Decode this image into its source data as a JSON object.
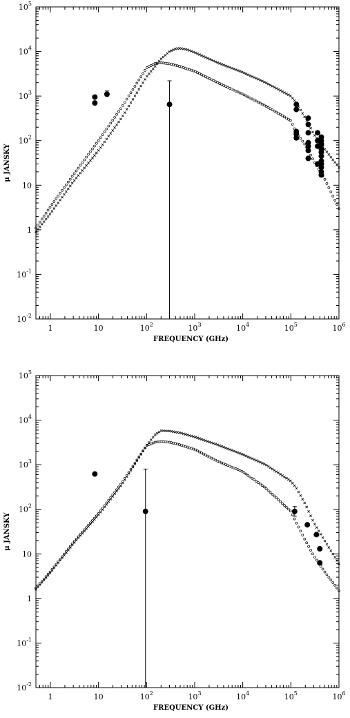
{
  "chart_data": [
    {
      "type": "scatter",
      "xlabel": "FREQUENCY (GHz)",
      "ylabel": "μ JANSKY",
      "x_scale": "log",
      "y_scale": "log",
      "xlim": [
        0.5,
        1000000
      ],
      "ylim": [
        0.01,
        100000
      ],
      "x_ticks": [
        {
          "base": "1",
          "exp": ""
        },
        {
          "base": "10",
          "exp": ""
        },
        {
          "base": "10",
          "exp": "2"
        },
        {
          "base": "10",
          "exp": "3"
        },
        {
          "base": "10",
          "exp": "4"
        },
        {
          "base": "10",
          "exp": "5"
        },
        {
          "base": "10",
          "exp": "6"
        }
      ],
      "y_ticks": [
        {
          "base": "10",
          "exp": "-2"
        },
        {
          "base": "10",
          "exp": "-1"
        },
        {
          "base": "1",
          "exp": ""
        },
        {
          "base": "10",
          "exp": ""
        },
        {
          "base": "10",
          "exp": "2"
        },
        {
          "base": "10",
          "exp": "3"
        },
        {
          "base": "10",
          "exp": "4"
        },
        {
          "base": "10",
          "exp": "5"
        }
      ],
      "grid": false,
      "series": [
        {
          "marker": "cross",
          "style": "model",
          "x": [
            0.5,
            1,
            3,
            10,
            30,
            100,
            200,
            300,
            400,
            500,
            700,
            1000,
            3000,
            10000,
            30000,
            100000,
            130000,
            200000,
            300000,
            500000,
            1000000
          ],
          "y": [
            0.9,
            2.3,
            12,
            60,
            320,
            2700,
            6800,
            10000,
            11500,
            11800,
            11000,
            9500,
            5600,
            3400,
            2000,
            1000,
            700,
            320,
            140,
            65,
            25
          ]
        },
        {
          "marker": "circle",
          "style": "model",
          "x": [
            0.5,
            1,
            3,
            10,
            30,
            100,
            150,
            200,
            300,
            500,
            1000,
            3000,
            10000,
            30000,
            100000,
            130000,
            200000,
            300000,
            500000,
            1000000
          ],
          "y": [
            1.1,
            3.3,
            17,
            100,
            550,
            4300,
            5400,
            5600,
            5300,
            4600,
            3600,
            2000,
            1100,
            600,
            280,
            150,
            80,
            35,
            14,
            3
          ]
        },
        {
          "marker": "dot",
          "style": "data",
          "x": [
            8.4,
            8.4,
            15,
            300,
            130000,
            130000,
            130000,
            130000,
            130000,
            230000,
            230000,
            230000,
            230000,
            230000,
            230000,
            230000,
            360000,
            360000,
            360000,
            360000,
            430000,
            430000,
            430000,
            430000,
            430000,
            430000,
            430000,
            430000,
            430000,
            430000,
            430000,
            430000
          ],
          "y": [
            950,
            700,
            1100,
            650,
            650,
            500,
            160,
            140,
            115,
            320,
            230,
            150,
            90,
            75,
            60,
            40,
            150,
            100,
            75,
            30,
            120,
            100,
            85,
            80,
            65,
            55,
            45,
            35,
            30,
            25,
            20,
            17
          ],
          "yerr_low": [
            null,
            null,
            1000,
            0.01,
            null,
            null,
            null,
            null,
            105,
            null,
            null,
            null,
            null,
            null,
            null,
            null,
            null,
            null,
            null,
            null,
            null,
            null,
            null,
            null,
            null,
            null,
            null,
            null,
            null,
            null,
            null,
            null
          ],
          "yerr_high": [
            null,
            null,
            1300,
            2200,
            null,
            null,
            null,
            null,
            125,
            null,
            null,
            null,
            null,
            null,
            null,
            null,
            null,
            null,
            null,
            null,
            null,
            null,
            null,
            null,
            null,
            null,
            null,
            null,
            null,
            null,
            null,
            null
          ]
        }
      ]
    },
    {
      "type": "scatter",
      "xlabel": "FREQUENCY (GHz)",
      "ylabel": "μ JANSKY",
      "x_scale": "log",
      "y_scale": "log",
      "xlim": [
        0.5,
        1000000
      ],
      "ylim": [
        0.01,
        100000
      ],
      "x_ticks": [
        {
          "base": "1",
          "exp": ""
        },
        {
          "base": "10",
          "exp": ""
        },
        {
          "base": "10",
          "exp": "2"
        },
        {
          "base": "10",
          "exp": "3"
        },
        {
          "base": "10",
          "exp": "4"
        },
        {
          "base": "10",
          "exp": "5"
        },
        {
          "base": "10",
          "exp": "6"
        }
      ],
      "y_ticks": [
        {
          "base": "10",
          "exp": "-2"
        },
        {
          "base": "10",
          "exp": "-1"
        },
        {
          "base": "1",
          "exp": ""
        },
        {
          "base": "10",
          "exp": ""
        },
        {
          "base": "10",
          "exp": "2"
        },
        {
          "base": "10",
          "exp": "3"
        },
        {
          "base": "10",
          "exp": "4"
        },
        {
          "base": "10",
          "exp": "5"
        }
      ],
      "grid": false,
      "series": [
        {
          "marker": "cross",
          "style": "model",
          "x": [
            0.5,
            1,
            3,
            10,
            30,
            100,
            150,
            200,
            300,
            500,
            1000,
            3000,
            10000,
            30000,
            100000,
            130000,
            200000,
            300000,
            500000,
            1000000
          ],
          "y": [
            1.6,
            3.8,
            17,
            75,
            350,
            2700,
            4700,
            5800,
            5700,
            5200,
            4200,
            2800,
            1700,
            1000,
            430,
            300,
            130,
            50,
            20,
            6
          ]
        },
        {
          "marker": "circle",
          "style": "model",
          "x": [
            0.5,
            1,
            3,
            10,
            30,
            100,
            150,
            200,
            300,
            500,
            1000,
            3000,
            10000,
            30000,
            100000,
            130000,
            200000,
            300000,
            500000,
            1000000
          ],
          "y": [
            1.7,
            4,
            18,
            80,
            380,
            2700,
            3200,
            3300,
            3200,
            2800,
            2200,
            1200,
            700,
            300,
            90,
            50,
            20,
            9,
            4,
            1.5
          ]
        },
        {
          "marker": "dot",
          "style": "data",
          "x": [
            8.4,
            95,
            120000,
            220000,
            340000,
            400000,
            400000
          ],
          "y": [
            620,
            90,
            90,
            45,
            27,
            13,
            6.3
          ],
          "yerr_low": [
            null,
            0.01,
            70,
            null,
            null,
            null,
            null
          ],
          "yerr_high": [
            null,
            800,
            115,
            null,
            null,
            null,
            null
          ]
        }
      ]
    }
  ]
}
